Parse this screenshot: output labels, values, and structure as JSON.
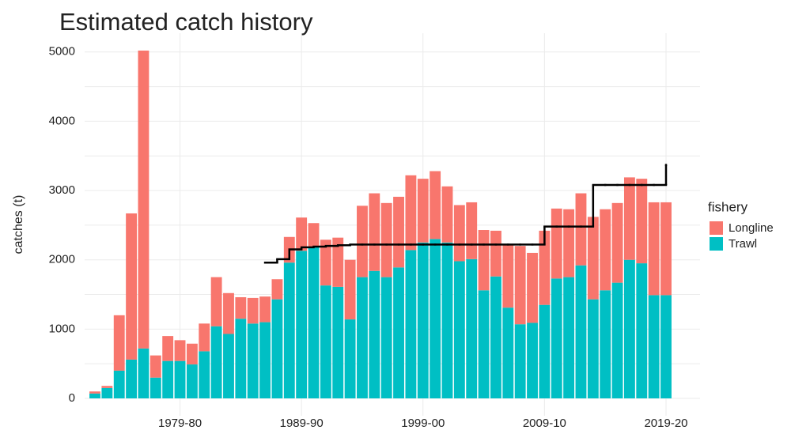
{
  "chart_data": {
    "type": "bar",
    "stacked": true,
    "title": "Estimated catch history",
    "y_label": "catches (t)",
    "legend_title": "fishery",
    "legend_position": "right",
    "grid": true,
    "categories": [
      null,
      null,
      null,
      null,
      null,
      null,
      null,
      "1979-80",
      null,
      null,
      null,
      null,
      null,
      null,
      null,
      null,
      null,
      "1989-90",
      null,
      null,
      null,
      null,
      null,
      null,
      null,
      null,
      null,
      "1999-00",
      null,
      null,
      null,
      null,
      null,
      null,
      null,
      null,
      null,
      "2009-10",
      null,
      null,
      null,
      null,
      null,
      null,
      null,
      null,
      null,
      "2019-20"
    ],
    "ylim": [
      -251,
      5271
    ],
    "yticks": [
      0,
      1000,
      2000,
      3000,
      4000,
      5000
    ],
    "series": [
      {
        "name": "Trawl",
        "color": "#00BFC4",
        "values": [
          70,
          150,
          400,
          560,
          720,
          300,
          540,
          540,
          490,
          680,
          1040,
          930,
          1150,
          1080,
          1100,
          1430,
          1960,
          2130,
          2180,
          1630,
          1610,
          1140,
          1750,
          1840,
          1750,
          1890,
          2140,
          2250,
          2300,
          2250,
          1980,
          2010,
          1560,
          1760,
          1310,
          1070,
          1090,
          1350,
          1730,
          1750,
          1920,
          1430,
          1560,
          1670,
          2000,
          1950,
          1490,
          1490
        ]
      },
      {
        "name": "Longline",
        "color": "#F8766D",
        "values": [
          30,
          30,
          800,
          2110,
          4300,
          320,
          360,
          300,
          300,
          400,
          710,
          590,
          310,
          370,
          370,
          290,
          370,
          480,
          350,
          660,
          710,
          860,
          1030,
          1120,
          1070,
          1020,
          1080,
          920,
          980,
          810,
          810,
          820,
          870,
          660,
          900,
          1130,
          1010,
          1070,
          1010,
          980,
          1040,
          1190,
          1170,
          1150,
          1190,
          1220,
          1340,
          1340
        ]
      },
      {
        "type": "step",
        "color": "#000000",
        "values": [
          null,
          null,
          null,
          null,
          null,
          null,
          null,
          null,
          null,
          null,
          null,
          null,
          null,
          null,
          1960,
          2010,
          2150,
          2180,
          2190,
          2200,
          2210,
          2220,
          2220,
          2220,
          2220,
          2220,
          2220,
          2220,
          2220,
          2220,
          2220,
          2220,
          2220,
          2220,
          2220,
          2220,
          2220,
          2480,
          2480,
          2480,
          2480,
          3080,
          3080,
          3080,
          3080,
          3080,
          3080,
          3370
        ]
      }
    ]
  }
}
